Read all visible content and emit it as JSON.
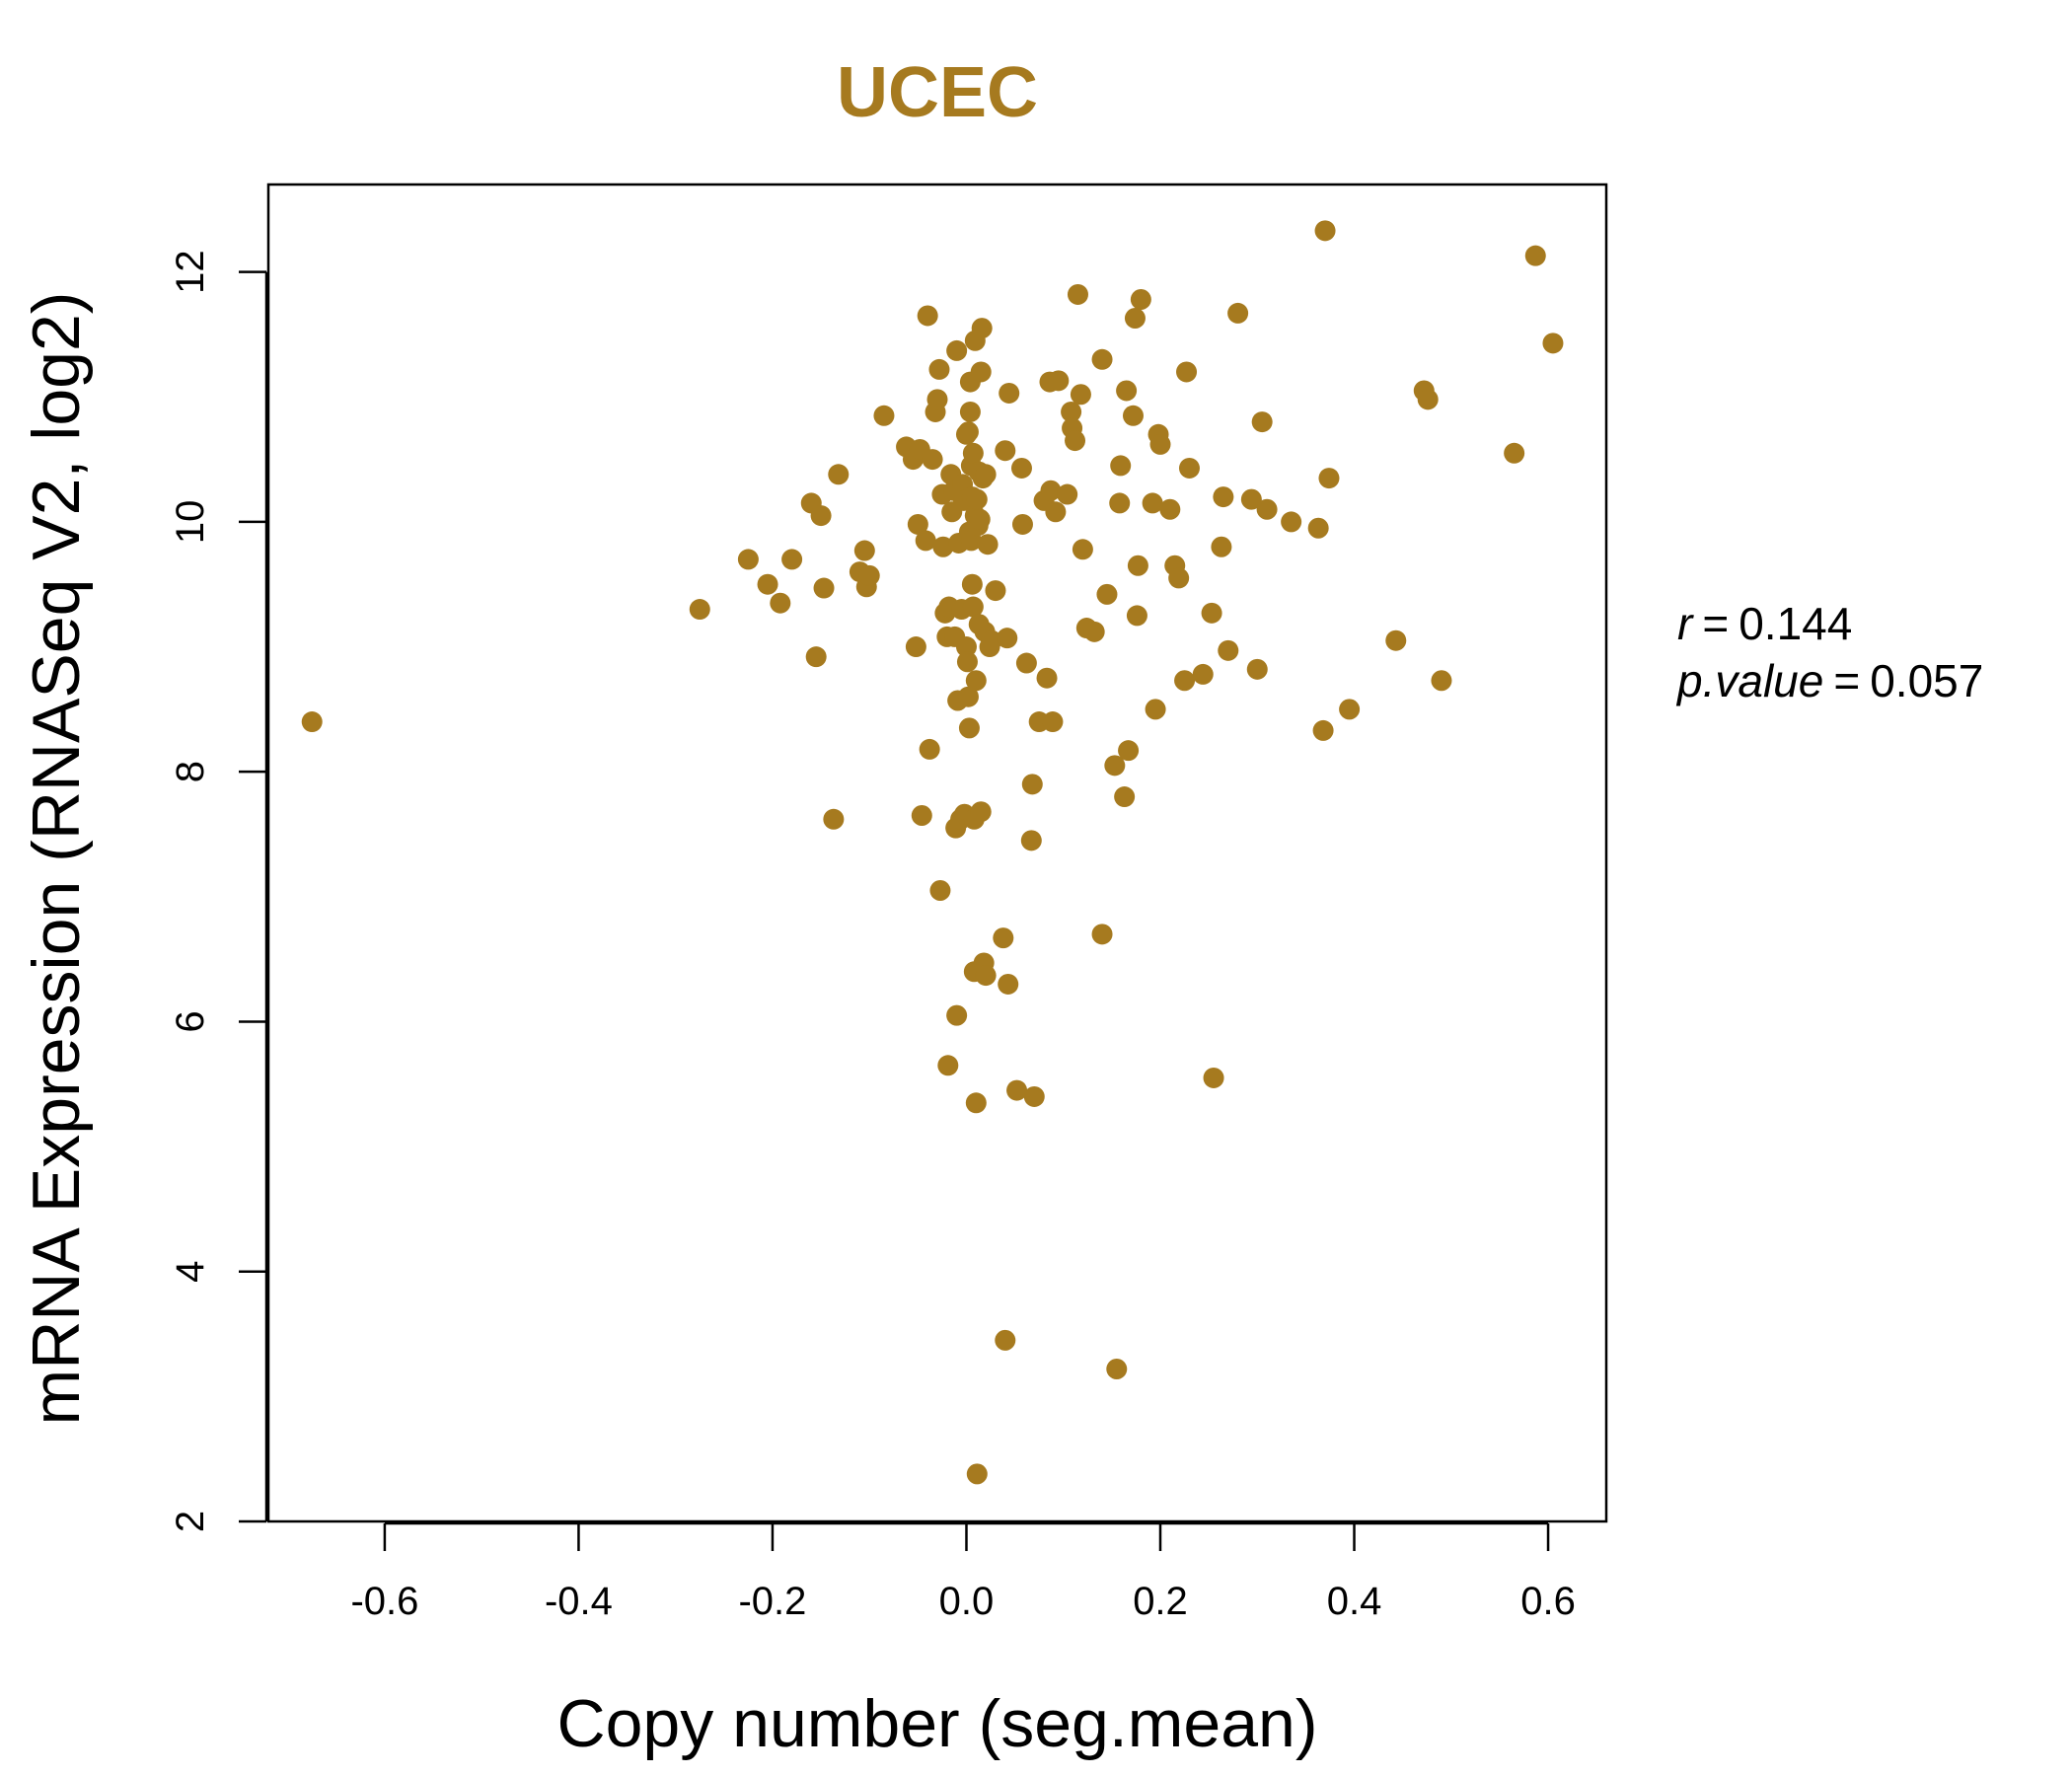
{
  "colors": {
    "accent": "#a67a1f",
    "axis": "#000000"
  },
  "chart_data": {
    "type": "scatter",
    "title": "UCEC",
    "xlabel": "Copy number (seg.mean)",
    "ylabel": "mRNA Expression (RNASeq V2, log2)",
    "xlim": [
      -0.72,
      0.66
    ],
    "ylim": [
      2,
      12.7
    ],
    "xticks": [
      -0.6,
      -0.4,
      -0.2,
      0.0,
      0.2,
      0.4,
      0.6
    ],
    "xtick_labels": [
      "-0.6",
      "-0.4",
      "-0.2",
      "0.0",
      "0.2",
      "0.4",
      "0.6"
    ],
    "yticks": [
      2,
      4,
      6,
      8,
      10,
      12
    ],
    "ytick_labels": [
      "2",
      "4",
      "6",
      "8",
      "10",
      "12"
    ],
    "grid": false,
    "legend": "none",
    "annotations": {
      "r_label": "r",
      "r_value": "0.144",
      "p_label": "p.value",
      "p_value": "0.057"
    },
    "points": [
      [
        -0.675,
        8.4
      ],
      [
        -0.275,
        9.3
      ],
      [
        -0.225,
        9.7
      ],
      [
        -0.205,
        9.5
      ],
      [
        -0.192,
        9.35
      ],
      [
        -0.18,
        9.7
      ],
      [
        -0.16,
        10.15
      ],
      [
        -0.155,
        8.92
      ],
      [
        -0.15,
        10.05
      ],
      [
        -0.147,
        9.47
      ],
      [
        -0.137,
        7.62
      ],
      [
        -0.132,
        10.38
      ],
      [
        -0.11,
        9.6
      ],
      [
        -0.105,
        9.77
      ],
      [
        -0.103,
        9.48
      ],
      [
        -0.1,
        9.57
      ],
      [
        -0.085,
        10.85
      ],
      [
        -0.062,
        10.6
      ],
      [
        -0.055,
        10.5
      ],
      [
        -0.052,
        9.0
      ],
      [
        -0.05,
        9.98
      ],
      [
        -0.048,
        10.58
      ],
      [
        -0.046,
        7.65
      ],
      [
        -0.042,
        9.85
      ],
      [
        -0.04,
        11.65
      ],
      [
        -0.038,
        8.18
      ],
      [
        -0.035,
        10.5
      ],
      [
        -0.032,
        10.88
      ],
      [
        -0.03,
        10.98
      ],
      [
        -0.028,
        11.22
      ],
      [
        -0.027,
        7.05
      ],
      [
        -0.025,
        10.22
      ],
      [
        -0.024,
        9.8
      ],
      [
        -0.022,
        9.27
      ],
      [
        -0.02,
        9.08
      ],
      [
        -0.019,
        5.65
      ],
      [
        -0.018,
        9.32
      ],
      [
        -0.016,
        10.38
      ],
      [
        -0.015,
        10.08
      ],
      [
        -0.013,
        10.25
      ],
      [
        -0.012,
        9.08
      ],
      [
        -0.011,
        7.55
      ],
      [
        -0.01,
        11.37
      ],
      [
        -0.01,
        6.05
      ],
      [
        -0.009,
        8.57
      ],
      [
        -0.008,
        9.83
      ],
      [
        -0.006,
        7.62
      ],
      [
        -0.005,
        9.3
      ],
      [
        -0.004,
        10.3
      ],
      [
        -0.003,
        10.17
      ],
      [
        -0.002,
        7.66
      ],
      [
        0.0,
        10.7
      ],
      [
        0.0,
        9.0
      ],
      [
        0.001,
        8.88
      ],
      [
        0.002,
        10.72
      ],
      [
        0.002,
        8.6
      ],
      [
        0.003,
        8.35
      ],
      [
        0.003,
        9.92
      ],
      [
        0.004,
        10.88
      ],
      [
        0.004,
        11.12
      ],
      [
        0.005,
        9.85
      ],
      [
        0.005,
        10.45
      ],
      [
        0.006,
        9.5
      ],
      [
        0.006,
        10.2
      ],
      [
        0.007,
        10.55
      ],
      [
        0.007,
        9.32
      ],
      [
        0.008,
        7.62
      ],
      [
        0.008,
        6.4
      ],
      [
        0.009,
        10.05
      ],
      [
        0.009,
        11.45
      ],
      [
        0.01,
        8.73
      ],
      [
        0.01,
        5.35
      ],
      [
        0.011,
        10.18
      ],
      [
        0.011,
        2.38
      ],
      [
        0.012,
        9.97
      ],
      [
        0.013,
        10.4
      ],
      [
        0.013,
        9.18
      ],
      [
        0.014,
        10.02
      ],
      [
        0.015,
        11.2
      ],
      [
        0.015,
        7.68
      ],
      [
        0.016,
        11.55
      ],
      [
        0.017,
        10.35
      ],
      [
        0.018,
        6.47
      ],
      [
        0.019,
        9.12
      ],
      [
        0.02,
        10.38
      ],
      [
        0.02,
        6.37
      ],
      [
        0.022,
        9.82
      ],
      [
        0.024,
        9.0
      ],
      [
        0.026,
        9.05
      ],
      [
        0.03,
        9.45
      ],
      [
        0.038,
        6.67
      ],
      [
        0.04,
        10.57
      ],
      [
        0.04,
        3.45
      ],
      [
        0.042,
        9.07
      ],
      [
        0.043,
        6.3
      ],
      [
        0.044,
        11.03
      ],
      [
        0.052,
        5.45
      ],
      [
        0.057,
        10.43
      ],
      [
        0.058,
        9.98
      ],
      [
        0.062,
        8.87
      ],
      [
        0.067,
        7.45
      ],
      [
        0.068,
        7.9
      ],
      [
        0.07,
        5.4
      ],
      [
        0.075,
        8.4
      ],
      [
        0.08,
        10.17
      ],
      [
        0.083,
        8.75
      ],
      [
        0.086,
        11.12
      ],
      [
        0.087,
        10.25
      ],
      [
        0.089,
        8.4
      ],
      [
        0.092,
        10.08
      ],
      [
        0.095,
        11.13
      ],
      [
        0.104,
        10.22
      ],
      [
        0.108,
        10.88
      ],
      [
        0.109,
        10.75
      ],
      [
        0.112,
        10.65
      ],
      [
        0.115,
        11.82
      ],
      [
        0.118,
        11.02
      ],
      [
        0.12,
        9.78
      ],
      [
        0.124,
        9.15
      ],
      [
        0.132,
        9.12
      ],
      [
        0.14,
        11.3
      ],
      [
        0.14,
        6.7
      ],
      [
        0.145,
        9.42
      ],
      [
        0.153,
        8.05
      ],
      [
        0.155,
        3.22
      ],
      [
        0.158,
        10.15
      ],
      [
        0.159,
        10.45
      ],
      [
        0.163,
        7.8
      ],
      [
        0.165,
        11.05
      ],
      [
        0.167,
        8.17
      ],
      [
        0.172,
        10.85
      ],
      [
        0.174,
        11.63
      ],
      [
        0.176,
        9.25
      ],
      [
        0.177,
        9.65
      ],
      [
        0.18,
        11.78
      ],
      [
        0.192,
        10.15
      ],
      [
        0.195,
        8.5
      ],
      [
        0.198,
        10.7
      ],
      [
        0.2,
        10.62
      ],
      [
        0.21,
        10.1
      ],
      [
        0.215,
        9.65
      ],
      [
        0.219,
        9.55
      ],
      [
        0.225,
        8.73
      ],
      [
        0.227,
        11.2
      ],
      [
        0.23,
        10.43
      ],
      [
        0.244,
        8.78
      ],
      [
        0.253,
        9.27
      ],
      [
        0.255,
        5.55
      ],
      [
        0.263,
        9.8
      ],
      [
        0.265,
        10.2
      ],
      [
        0.27,
        8.97
      ],
      [
        0.28,
        11.67
      ],
      [
        0.294,
        10.18
      ],
      [
        0.3,
        8.82
      ],
      [
        0.305,
        10.8
      ],
      [
        0.31,
        10.1
      ],
      [
        0.335,
        10.0
      ],
      [
        0.363,
        9.95
      ],
      [
        0.368,
        8.33
      ],
      [
        0.37,
        12.33
      ],
      [
        0.374,
        10.35
      ],
      [
        0.395,
        8.5
      ],
      [
        0.443,
        9.05
      ],
      [
        0.472,
        11.05
      ],
      [
        0.476,
        10.98
      ],
      [
        0.49,
        8.73
      ],
      [
        0.565,
        10.55
      ],
      [
        0.587,
        12.13
      ],
      [
        0.605,
        11.43
      ]
    ]
  }
}
